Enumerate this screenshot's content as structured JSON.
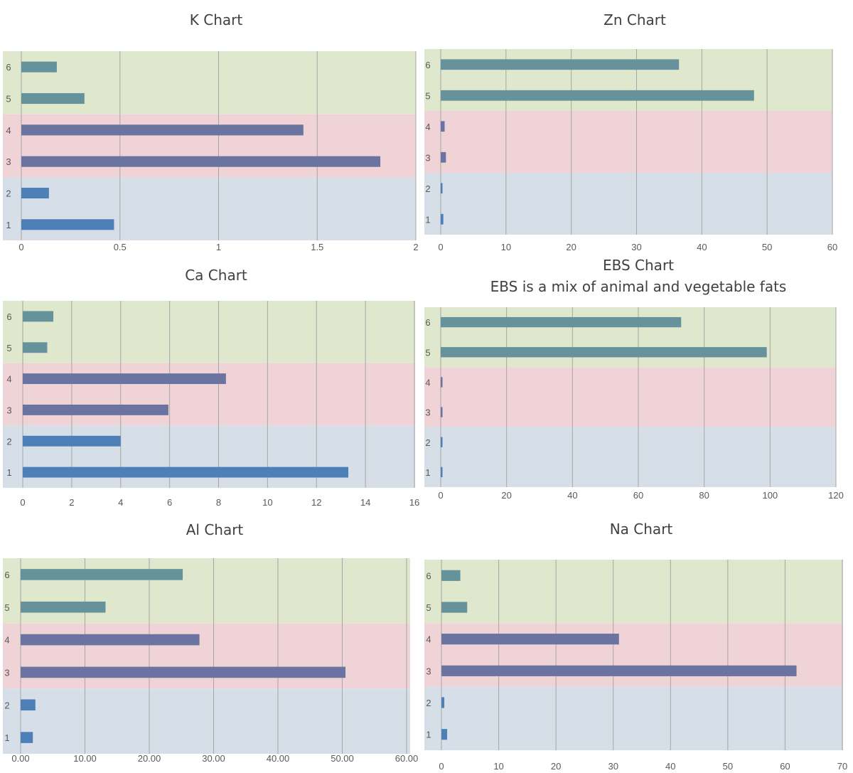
{
  "colors": {
    "band_low": "#d6dfe8",
    "band_mid": "#f0d3d7",
    "band_high": "#dfe7cc",
    "bar_low": "#4e80b8",
    "bar_mid": "#6b73a0",
    "bar_high": "#66939b"
  },
  "chart_data": [
    {
      "type": "bar",
      "orientation": "horizontal",
      "title": "K Chart",
      "subtitle": "",
      "categories": [
        "1",
        "2",
        "3",
        "4",
        "5",
        "6"
      ],
      "values": [
        0.47,
        0.14,
        1.82,
        1.43,
        0.32,
        0.18
      ],
      "xlim": [
        0,
        2
      ],
      "ticks": [
        "0",
        "0.5",
        "1",
        "1.5",
        "2"
      ],
      "grid": true
    },
    {
      "type": "bar",
      "orientation": "horizontal",
      "title": "Zn Chart",
      "subtitle": "",
      "categories": [
        "1",
        "2",
        "3",
        "4",
        "5",
        "6"
      ],
      "values": [
        0.4,
        0.2,
        0.8,
        0.6,
        48,
        36.5
      ],
      "xlim": [
        0,
        60
      ],
      "ticks": [
        "0",
        "10",
        "20",
        "30",
        "40",
        "50",
        "60"
      ],
      "grid": true
    },
    {
      "type": "bar",
      "orientation": "horizontal",
      "title": "Ca Chart",
      "subtitle": "",
      "categories": [
        "1",
        "2",
        "3",
        "4",
        "5",
        "6"
      ],
      "values": [
        13.3,
        4,
        5.95,
        8.3,
        1,
        1.25
      ],
      "xlim": [
        0,
        16
      ],
      "ticks": [
        "0",
        "2",
        "4",
        "6",
        "8",
        "10",
        "12",
        "14",
        "16"
      ],
      "grid": true
    },
    {
      "type": "bar",
      "orientation": "horizontal",
      "title": "EBS Chart",
      "subtitle": "EBS is a mix of animal and vegetable fats",
      "categories": [
        "1",
        "2",
        "3",
        "4",
        "5",
        "6"
      ],
      "values": [
        0.5,
        0.5,
        0.5,
        0.5,
        99,
        73
      ],
      "xlim": [
        0,
        120
      ],
      "ticks": [
        "0",
        "20",
        "40",
        "60",
        "80",
        "100",
        "120"
      ],
      "grid": true
    },
    {
      "type": "bar",
      "orientation": "horizontal",
      "title": "Al Chart",
      "subtitle": "",
      "categories": [
        "1",
        "2",
        "3",
        "4",
        "5",
        "6"
      ],
      "values": [
        1.9,
        2.3,
        50.5,
        27.8,
        13.2,
        25.2
      ],
      "xlim": [
        0,
        60
      ],
      "ticks": [
        "0.00",
        "10.00",
        "20.00",
        "30.00",
        "40.00",
        "50.00",
        "60.00"
      ],
      "grid": true
    },
    {
      "type": "bar",
      "orientation": "horizontal",
      "title": "Na Chart",
      "subtitle": "",
      "categories": [
        "1",
        "2",
        "3",
        "4",
        "5",
        "6"
      ],
      "values": [
        1,
        0.5,
        62,
        31,
        4.5,
        3.3
      ],
      "xlim": [
        0,
        70
      ],
      "ticks": [
        "0",
        "10",
        "20",
        "30",
        "40",
        "50",
        "60",
        "70"
      ],
      "grid": true
    }
  ]
}
